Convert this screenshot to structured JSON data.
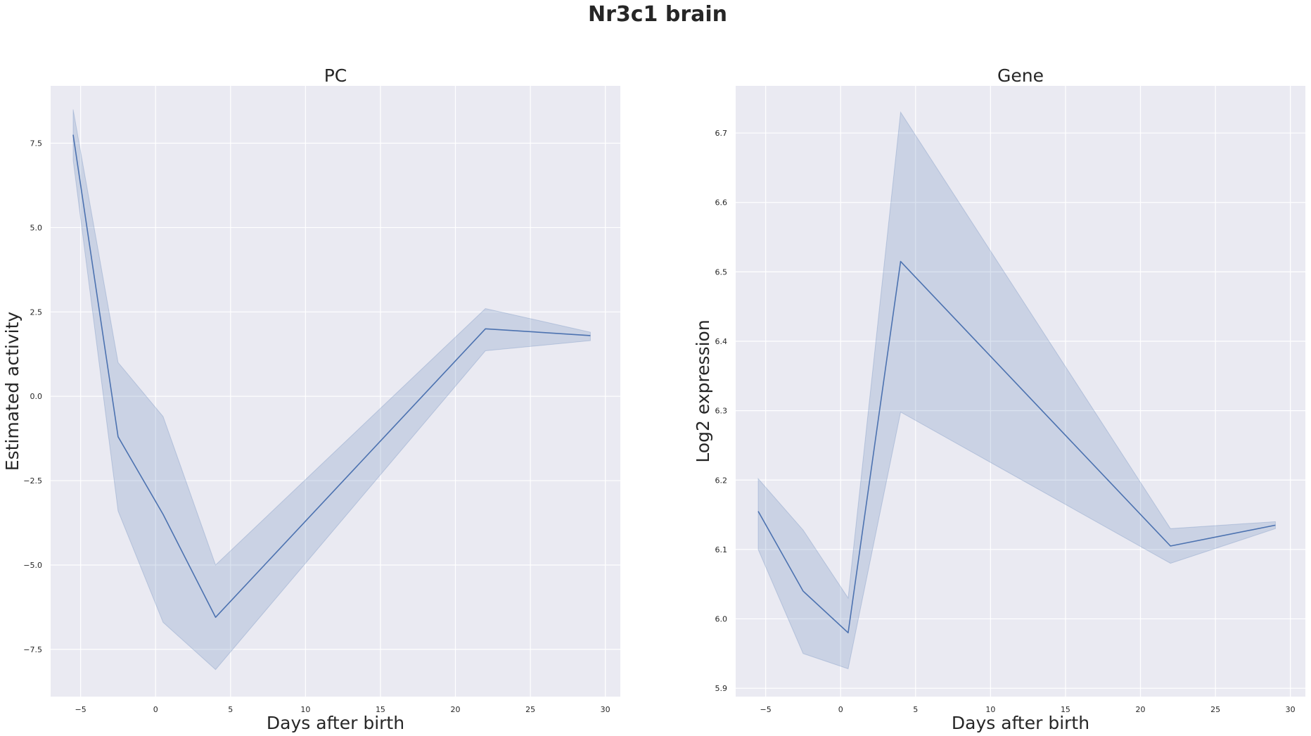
{
  "figure": {
    "suptitle": "Nr3c1 brain"
  },
  "colors": {
    "line": "#4c72b0",
    "band": "#4c72b0",
    "plot_background": "#eaeaf2",
    "grid": "#ffffff"
  },
  "chart_data": [
    {
      "type": "line",
      "title": "PC",
      "xlabel": "Days after birth",
      "ylabel": "Estimated activity",
      "xlim": [
        -7,
        31
      ],
      "ylim": [
        -8.9,
        9.2
      ],
      "xticks": [
        -5,
        0,
        5,
        10,
        15,
        20,
        25,
        30
      ],
      "xtick_labels": [
        "−5",
        "0",
        "5",
        "10",
        "15",
        "20",
        "25",
        "30"
      ],
      "yticks": [
        -7.5,
        -5.0,
        -2.5,
        0.0,
        2.5,
        5.0,
        7.5
      ],
      "ytick_labels": [
        "−7.5",
        "−5.0",
        "−2.5",
        "0.0",
        "2.5",
        "5.0",
        "7.5"
      ],
      "grid": true,
      "series": [
        {
          "x": [
            -5.5,
            -2.5,
            0.5,
            4,
            22,
            29
          ],
          "y": [
            7.75,
            -1.2,
            -3.5,
            -6.55,
            2.0,
            1.8
          ],
          "ci_lower": [
            7.0,
            -3.4,
            -6.7,
            -8.1,
            1.35,
            1.65
          ],
          "ci_upper": [
            8.5,
            1.0,
            -0.6,
            -5.0,
            2.6,
            1.9
          ]
        }
      ]
    },
    {
      "type": "line",
      "title": "Gene",
      "xlabel": "Days after birth",
      "ylabel": "Log2 expression",
      "xlim": [
        -7,
        31
      ],
      "ylim": [
        5.888,
        6.768
      ],
      "xticks": [
        -5,
        0,
        5,
        10,
        15,
        20,
        25,
        30
      ],
      "xtick_labels": [
        "−5",
        "0",
        "5",
        "10",
        "15",
        "20",
        "25",
        "30"
      ],
      "yticks": [
        5.9,
        6.0,
        6.1,
        6.2,
        6.3,
        6.4,
        6.5,
        6.6,
        6.7
      ],
      "ytick_labels": [
        "5.9",
        "6.0",
        "6.1",
        "6.2",
        "6.3",
        "6.4",
        "6.5",
        "6.6",
        "6.7"
      ],
      "grid": true,
      "series": [
        {
          "x": [
            -5.5,
            -2.5,
            0.5,
            4,
            22,
            29
          ],
          "y": [
            6.155,
            6.04,
            5.98,
            6.515,
            6.105,
            6.135
          ],
          "ci_lower": [
            6.1,
            5.95,
            5.928,
            6.298,
            6.08,
            6.13
          ],
          "ci_upper": [
            6.202,
            6.128,
            6.03,
            6.73,
            6.13,
            6.14
          ]
        }
      ]
    }
  ]
}
